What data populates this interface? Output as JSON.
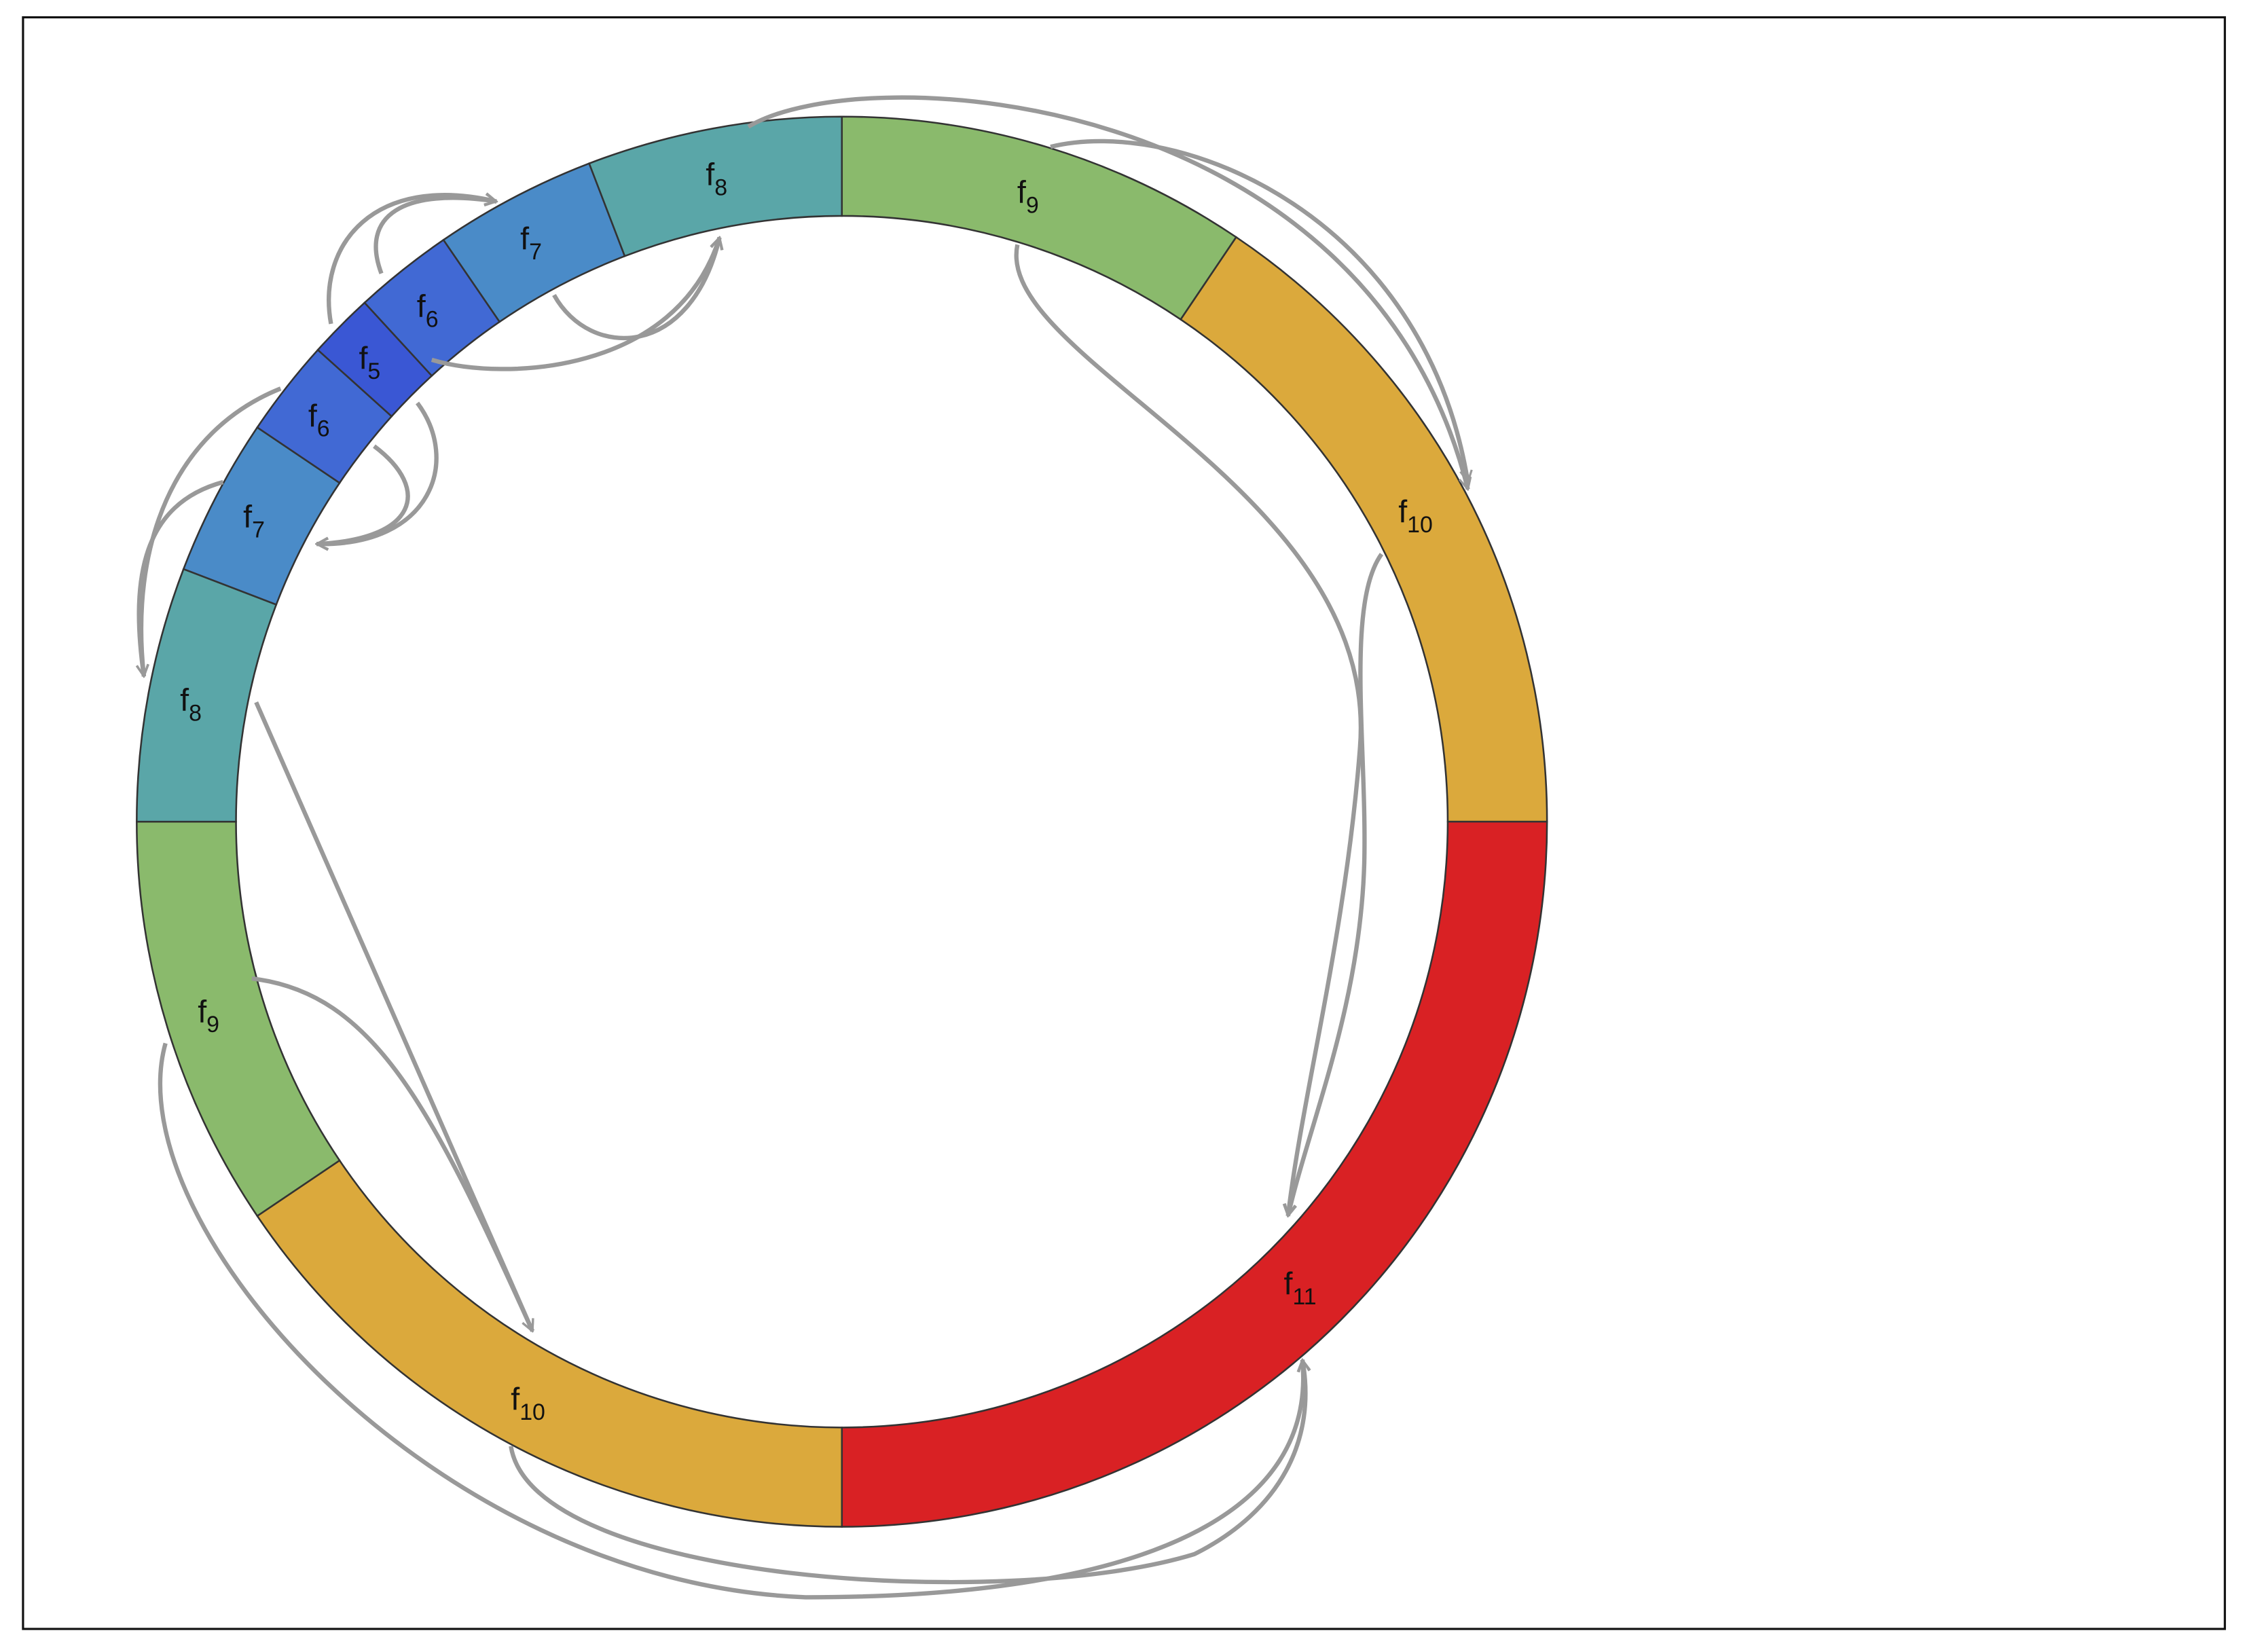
{
  "segments": [
    {
      "label": "f",
      "subscript": "9",
      "color": "#8aba6c"
    },
    {
      "label": "f",
      "subscript": "10",
      "color": "#dba93c"
    },
    {
      "label": "f",
      "subscript": "11",
      "color": "#d92124"
    },
    {
      "label": "f",
      "subscript": "10",
      "color": "#dba93c"
    },
    {
      "label": "f",
      "subscript": "9",
      "color": "#8aba6c"
    },
    {
      "label": "f",
      "subscript": "8",
      "color": "#5aa6a8"
    },
    {
      "label": "f",
      "subscript": "7",
      "color": "#4a8bc8"
    },
    {
      "label": "f",
      "subscript": "6",
      "color": "#4169d4"
    },
    {
      "label": "f",
      "subscript": "5",
      "color": "#3a57d4"
    },
    {
      "label": "f",
      "subscript": "6",
      "color": "#4169d4"
    },
    {
      "label": "f",
      "subscript": "7",
      "color": "#4a8bc8"
    },
    {
      "label": "f",
      "subscript": "8",
      "color": "#5aa6a8"
    }
  ]
}
